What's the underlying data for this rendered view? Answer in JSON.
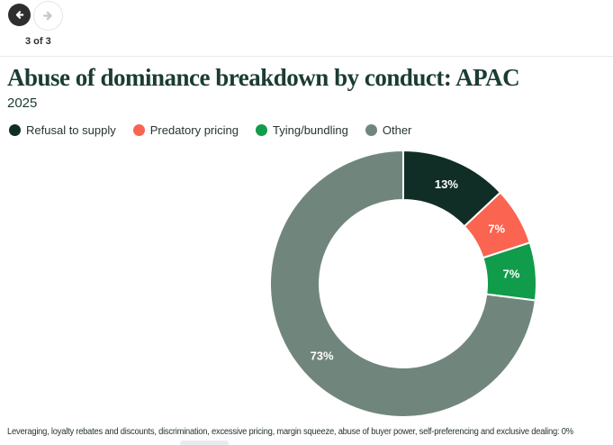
{
  "nav": {
    "pager_text": "3 of 3",
    "back_icon": "arrow-left-icon",
    "forward_icon": "arrow-right-icon",
    "back_circle_color": "#2e2e2e",
    "forward_arrow_color": "#c6cacd"
  },
  "header": {
    "title": "Abuse of dominance breakdown by conduct: APAC",
    "subtitle": "2025",
    "title_color": "#1a3c34"
  },
  "chart_data": {
    "type": "pie",
    "variant": "donut",
    "title": "Abuse of dominance breakdown by conduct: APAC",
    "subtitle": "2025",
    "categories": [
      "Refusal to supply",
      "Predatory pricing",
      "Tying/bundling",
      "Other"
    ],
    "values": [
      13,
      7,
      7,
      73
    ],
    "labels": [
      "13%",
      "7%",
      "7%",
      "73%"
    ],
    "colors": [
      "#11ltchanged",
      "#fa6450",
      "#119c4b",
      "#70867d"
    ],
    "unit": "%",
    "start_angle_deg": 0,
    "direction": "clockwise",
    "inner_radius_ratio": 0.63,
    "slice_separator_color": "#ffffff",
    "value_label_color": "#ffffff",
    "legend_position": "top"
  },
  "footnote": "Leveraging, loyalty rebates and discounts, discrimination, excessive pricing, margin squeeze, abuse of buyer power, self-preferencing and exclusive dealing: 0%"
}
